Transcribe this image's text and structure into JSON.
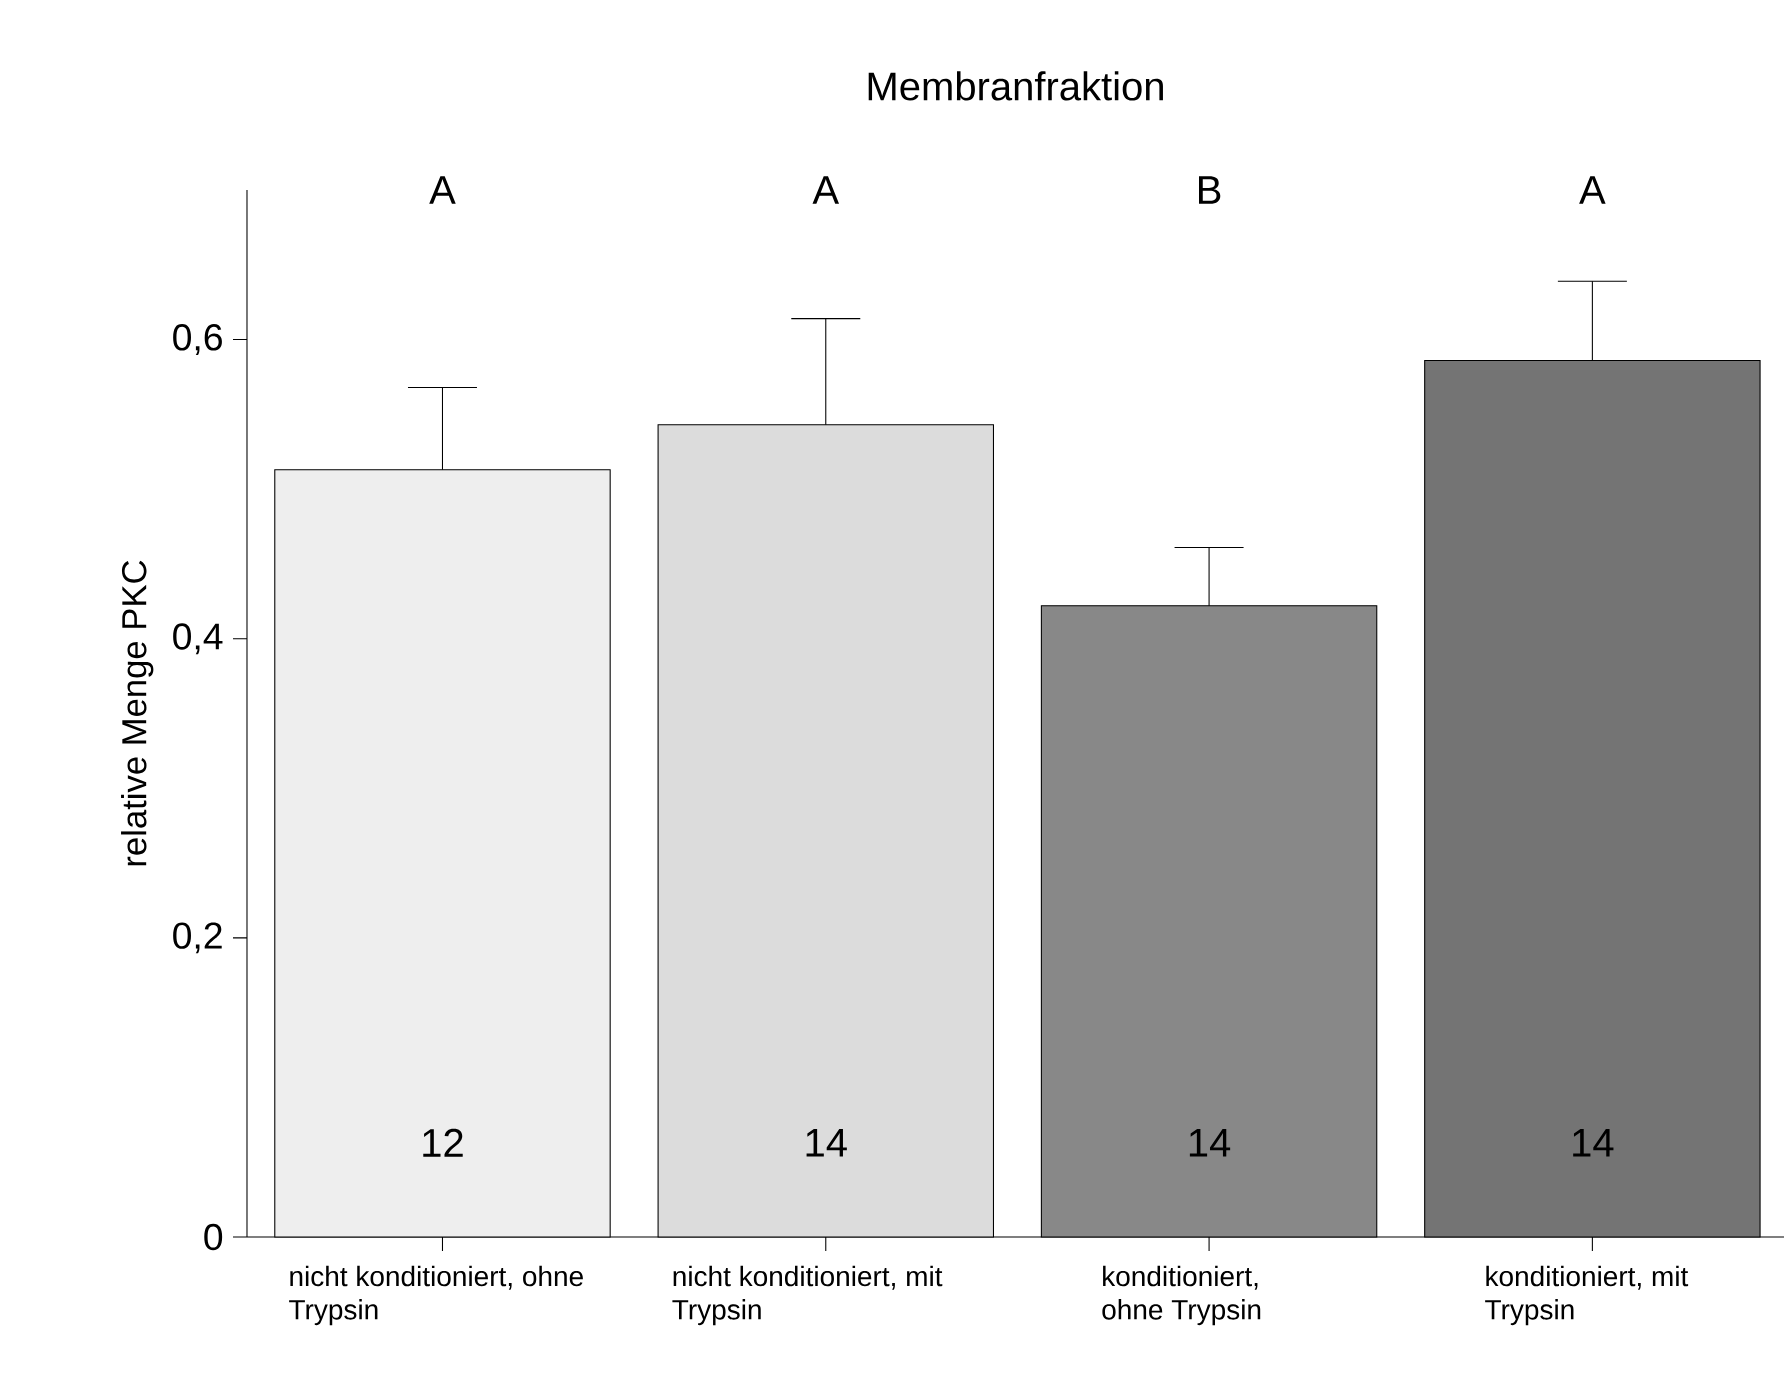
{
  "chart_data": {
    "type": "bar",
    "title": "Membranfraktion",
    "ylabel": "relative Menge PKC",
    "categories": [
      "nicht konditioniert, ohne Trypsin",
      "nicht konditioniert, mit Trypsin",
      "konditioniert, ohne Trypsin",
      "konditioniert, mit Trypsin"
    ],
    "values": [
      0.513,
      0.543,
      0.422,
      0.586
    ],
    "colors": [
      "#eeeeee",
      "#dcdcdc",
      "#888888",
      "#747474"
    ],
    "errors": [
      [
        0.513,
        0.568
      ],
      [
        0.543,
        0.614
      ],
      [
        0.422,
        0.461
      ],
      [
        0.586,
        0.639
      ]
    ],
    "ylim": [
      0,
      0.7
    ],
    "yticks": [
      0,
      {
        "value": 0.2,
        "label": "0,2"
      },
      {
        "value": 0.4,
        "label": "0,4"
      },
      {
        "value": 0.6,
        "label": "0,6"
      }
    ],
    "annotations": [
      "A",
      "A",
      "B",
      "A",
      "12",
      "14",
      "14",
      "14"
    ]
  }
}
